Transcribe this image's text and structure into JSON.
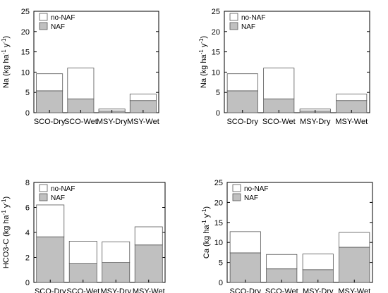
{
  "legend": {
    "stacked_label": "no-NAF",
    "base_label": "NAF",
    "stacked_color": "#ffffff",
    "base_color": "#c0c0c0"
  },
  "chart_data": [
    {
      "type": "bar",
      "stacked": true,
      "categories": [
        "SCO-Dry",
        "SCO-Wet",
        "MSY-Dry",
        "MSY-Wet"
      ],
      "ylabel_main": "Na (kg ha",
      "ylabel_sup1": "-1",
      "ylabel_mid": " y",
      "ylabel_sup2": "-1",
      "ylabel_end": ")",
      "ylim": [
        0,
        25
      ],
      "yticks": [
        0,
        5,
        10,
        15,
        20,
        25
      ],
      "series": [
        {
          "name": "NAF",
          "values": [
            5.4,
            3.4,
            0.4,
            3.0
          ]
        },
        {
          "name": "no-NAF",
          "values": [
            4.2,
            7.6,
            0.5,
            1.6
          ]
        }
      ]
    },
    {
      "type": "bar",
      "stacked": true,
      "categories": [
        "SCO-Dry",
        "SCO-Wet",
        "MSY-Dry",
        "MSY-Wet"
      ],
      "ylabel_main": "Na (kg ha",
      "ylabel_sup1": "-1",
      "ylabel_mid": " y",
      "ylabel_sup2": "-1",
      "ylabel_end": ")",
      "ylim": [
        0,
        25
      ],
      "yticks": [
        0,
        5,
        10,
        15,
        20,
        25
      ],
      "series": [
        {
          "name": "NAF",
          "values": [
            5.4,
            3.4,
            0.4,
            3.0
          ]
        },
        {
          "name": "no-NAF",
          "values": [
            4.2,
            7.6,
            0.5,
            1.6
          ]
        }
      ]
    },
    {
      "type": "bar",
      "stacked": true,
      "categories": [
        "SCO-Dry",
        "SCO-Wet",
        "MSY-Dry",
        "MSY-Wet"
      ],
      "ylabel_main": "HCO3-C (kg ha",
      "ylabel_sup1": "-1",
      "ylabel_mid": " y",
      "ylabel_sup2": "-1",
      "ylabel_end": ")",
      "ylim": [
        0,
        8
      ],
      "yticks": [
        0,
        2,
        4,
        6,
        8
      ],
      "series": [
        {
          "name": "NAF",
          "values": [
            3.65,
            1.5,
            1.6,
            3.0
          ]
        },
        {
          "name": "no-NAF",
          "values": [
            2.55,
            1.8,
            1.65,
            1.45
          ]
        }
      ]
    },
    {
      "type": "bar",
      "stacked": true,
      "categories": [
        "SCO-Dry",
        "SCO-Wet",
        "MSY-Dry",
        "MSY-Wet"
      ],
      "ylabel_main": "Ca (kg ha",
      "ylabel_sup1": "-1",
      "ylabel_mid": " y",
      "ylabel_sup2": "-1",
      "ylabel_end": ")",
      "ylim": [
        0,
        25
      ],
      "yticks": [
        0,
        5,
        10,
        15,
        20,
        25
      ],
      "series": [
        {
          "name": "NAF",
          "values": [
            7.4,
            3.4,
            3.2,
            8.8
          ]
        },
        {
          "name": "no-NAF",
          "values": [
            5.3,
            3.6,
            3.9,
            3.7
          ]
        }
      ]
    }
  ]
}
